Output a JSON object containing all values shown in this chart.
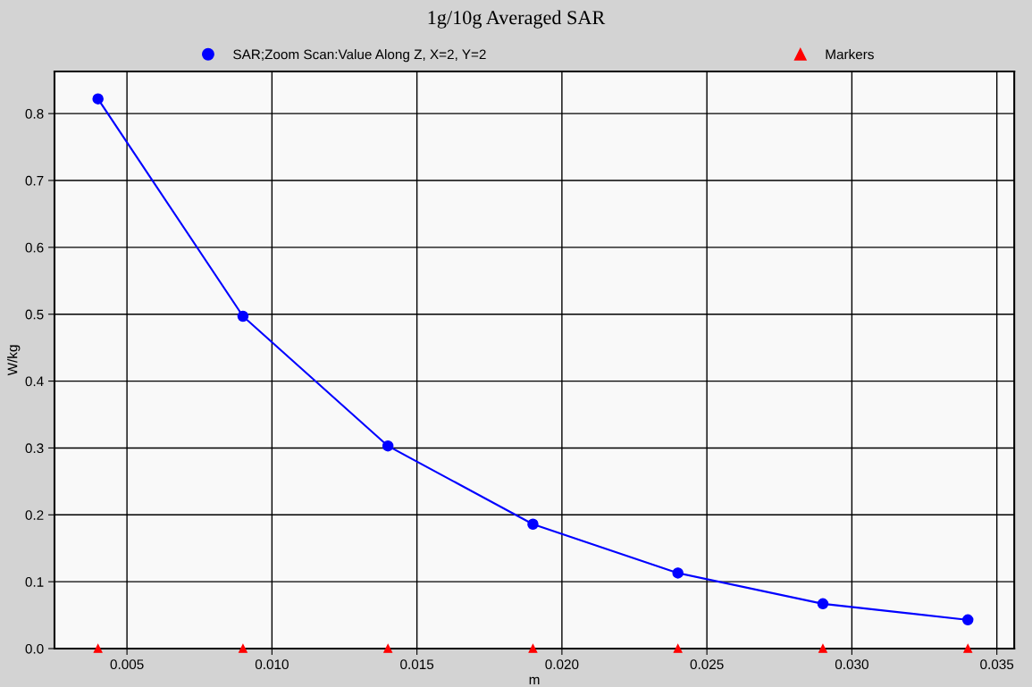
{
  "chart_data": {
    "type": "line",
    "title": "1g/10g Averaged SAR",
    "xlabel": "m",
    "ylabel": "W/kg",
    "x": [
      0.004,
      0.009,
      0.014,
      0.019,
      0.024,
      0.029,
      0.034
    ],
    "series": [
      {
        "name": "SAR;Zoom Scan:Value Along Z, X=2, Y=2",
        "color": "#0000ff",
        "marker": "circle",
        "values": [
          0.822,
          0.497,
          0.303,
          0.186,
          0.113,
          0.067,
          0.043
        ]
      },
      {
        "name": "Markers",
        "type": "scatter",
        "color": "#ff0000",
        "marker": "triangle",
        "values": [
          0,
          0,
          0,
          0,
          0,
          0,
          0
        ]
      }
    ],
    "xlim": [
      0.0025,
      0.0356
    ],
    "xticks": [
      {
        "value": 0.005,
        "label": "0.005"
      },
      {
        "value": 0.01,
        "label": "0.010"
      },
      {
        "value": 0.015,
        "label": "0.015"
      },
      {
        "value": 0.02,
        "label": "0.020"
      },
      {
        "value": 0.025,
        "label": "0.025"
      },
      {
        "value": 0.03,
        "label": "0.030"
      },
      {
        "value": 0.035,
        "label": "0.035"
      }
    ],
    "ylim": [
      0.0,
      0.863
    ],
    "yticks": [
      {
        "value": 0,
        "label": "0.0"
      },
      0.1,
      0.2,
      0.3,
      0.4,
      0.5,
      0.6,
      0.7,
      0.8
    ],
    "grid": true,
    "legend": "top"
  }
}
